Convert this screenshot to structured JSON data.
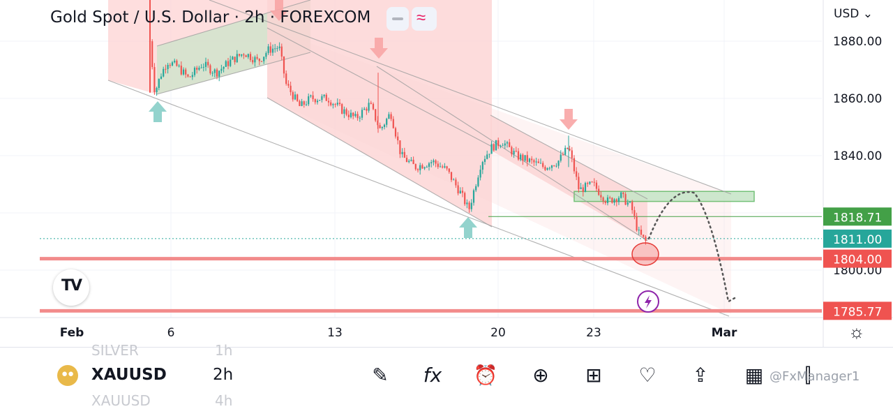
{
  "header": {
    "title": "Gold Spot / U.S. Dollar · 2h · FOREXCOM",
    "indicator_icons": [
      "minus-icon",
      "wave-icon"
    ],
    "currency_selector": "USD ⌄"
  },
  "chart_data": {
    "type": "candlestick",
    "symbol": "XAUUSD",
    "interval": "2h",
    "x_tick_labels": [
      "Feb",
      "6",
      "13",
      "20",
      "23",
      "Mar"
    ],
    "y_tick_labels": [
      "1880.00",
      "1860.00",
      "1840.00",
      "1800.00"
    ],
    "ylim": [
      1782,
      1891
    ],
    "grid": true,
    "price_tags": [
      {
        "value": "1818.71",
        "color": "#43a047"
      },
      {
        "value": "1811.00",
        "color": "#26a69a"
      },
      {
        "value": "1804.00",
        "color": "#ef5350"
      },
      {
        "value": "1785.77",
        "color": "#ef5350"
      }
    ],
    "horizontal_levels": [
      1818.71,
      1811.0,
      1804.0,
      1785.77
    ],
    "supply_zone": [
      1824,
      1827.5
    ],
    "projection_path": [
      1811,
      1827,
      1790
    ],
    "up_color": "#26a69a",
    "down_color": "#ef5350",
    "channel_fill": "#fdd3d3",
    "zone_fill": "#c8e6c9"
  },
  "bottom_bar": {
    "symbol": "XAUUSD",
    "interval": "2h",
    "faded_prev_symbol": "SILVER",
    "faded_prev_interval": "1h",
    "faded_next_symbol": "XAUUSD",
    "faded_next_interval": "4h",
    "tools": [
      "brush-icon",
      "function-icon",
      "alarm-plus-icon",
      "plus-circle-icon",
      "grid-icon",
      "lightbulb-icon",
      "share-icon",
      "calendar-icon",
      "candles-icon"
    ],
    "watermark": "@FxManager1"
  }
}
